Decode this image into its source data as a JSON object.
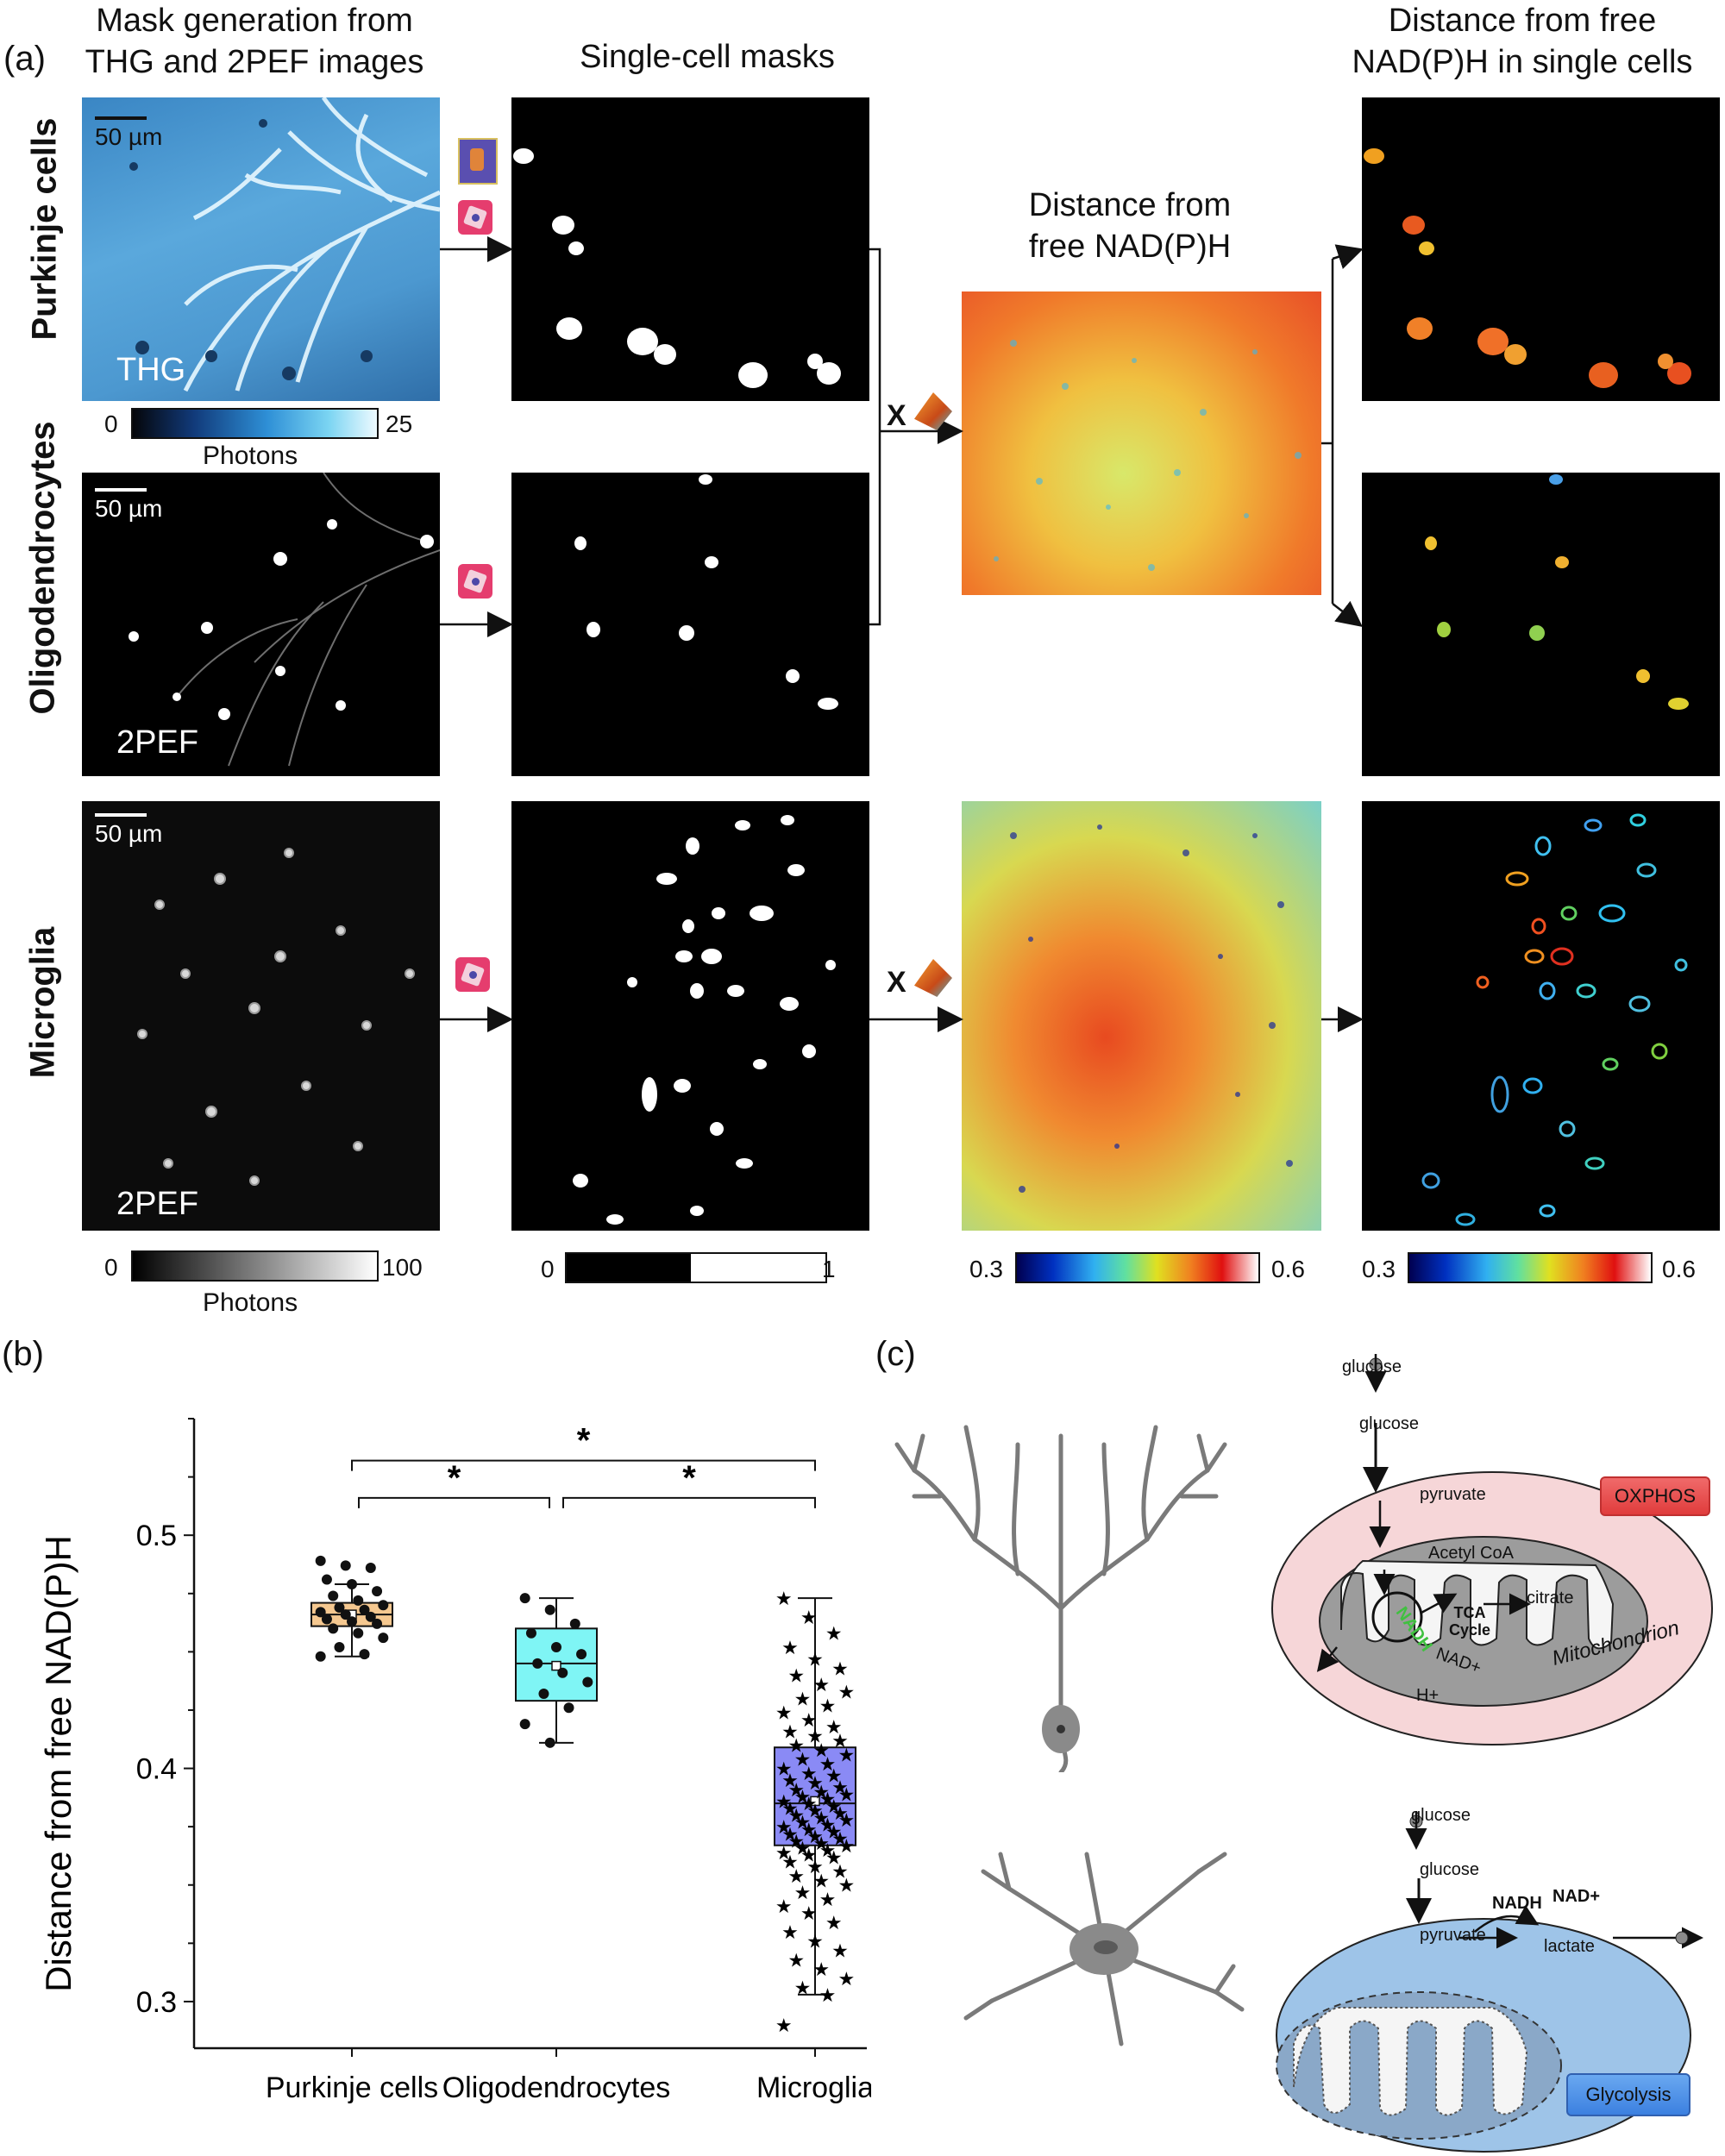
{
  "panel_a": {
    "label": "(a)",
    "headers": {
      "mask_generation": [
        "Mask generation from",
        "THG and 2PEF images"
      ],
      "single_cell": "Single-cell masks",
      "distance_map": [
        "Distance from",
        "free NAD(P)H"
      ],
      "distance_single": [
        "Distance from free",
        "NAD(P)H in single cells"
      ]
    },
    "rows": [
      "Purkinje cells",
      "Oligodendrocytes",
      "Microglia"
    ],
    "scalebar": "50 µm",
    "tags": {
      "thg": "THG",
      "pef1": "2PEF",
      "pef2": "2PEF"
    },
    "multiply_sign": "X",
    "colorbars": {
      "thg": {
        "min": "0",
        "max": "25",
        "label": "Photons"
      },
      "gray": {
        "min": "0",
        "max": "100",
        "label": "Photons"
      },
      "mask": {
        "min": "0",
        "max": "1"
      },
      "map1": {
        "min": "0.3",
        "max": "0.6"
      },
      "map2": {
        "min": "0.3",
        "max": "0.6"
      }
    }
  },
  "panel_b": {
    "label": "(b)",
    "chart_data": {
      "type": "box",
      "ylabel": "Distance from free NAD(P)H",
      "ylim": [
        0.28,
        0.55
      ],
      "yticks": [
        0.3,
        0.4,
        0.5
      ],
      "categories": [
        "Purkinje cells",
        "Oligodendrocytes",
        "Microglia"
      ],
      "boxes": [
        {
          "name": "Purkinje cells",
          "q1": 0.461,
          "median": 0.466,
          "q3": 0.471,
          "whisker_low": 0.448,
          "whisker_high": 0.479,
          "mean": 0.466,
          "color": "#f5c890",
          "points": [
            0.489,
            0.487,
            0.486,
            0.481,
            0.479,
            0.476,
            0.474,
            0.472,
            0.47,
            0.469,
            0.468,
            0.467,
            0.466,
            0.465,
            0.464,
            0.463,
            0.462,
            0.46,
            0.458,
            0.456,
            0.452,
            0.449,
            0.448
          ]
        },
        {
          "name": "Oligodendrocytes",
          "q1": 0.429,
          "median": 0.445,
          "q3": 0.46,
          "whisker_low": 0.411,
          "whisker_high": 0.473,
          "mean": 0.444,
          "color": "#7ff5f5",
          "points": [
            0.473,
            0.468,
            0.462,
            0.458,
            0.452,
            0.449,
            0.445,
            0.441,
            0.437,
            0.432,
            0.426,
            0.419,
            0.411
          ]
        },
        {
          "name": "Microglia",
          "q1": 0.367,
          "median": 0.385,
          "q3": 0.409,
          "whisker_low": 0.303,
          "whisker_high": 0.473,
          "mean": 0.386,
          "color": "#8a8af5",
          "points": [
            0.473,
            0.465,
            0.458,
            0.452,
            0.447,
            0.443,
            0.44,
            0.436,
            0.433,
            0.43,
            0.427,
            0.424,
            0.421,
            0.418,
            0.416,
            0.414,
            0.412,
            0.41,
            0.408,
            0.406,
            0.404,
            0.402,
            0.4,
            0.398,
            0.397,
            0.395,
            0.394,
            0.392,
            0.391,
            0.39,
            0.389,
            0.388,
            0.387,
            0.386,
            0.385,
            0.384,
            0.383,
            0.382,
            0.381,
            0.38,
            0.379,
            0.378,
            0.377,
            0.376,
            0.375,
            0.374,
            0.373,
            0.372,
            0.371,
            0.37,
            0.369,
            0.368,
            0.367,
            0.366,
            0.365,
            0.364,
            0.363,
            0.362,
            0.36,
            0.358,
            0.356,
            0.354,
            0.352,
            0.35,
            0.347,
            0.344,
            0.341,
            0.338,
            0.334,
            0.33,
            0.326,
            0.322,
            0.318,
            0.314,
            0.31,
            0.306,
            0.303,
            0.29
          ]
        }
      ],
      "significance": [
        {
          "from": 0,
          "to": 2,
          "mark": "*"
        },
        {
          "from": 0,
          "to": 1,
          "mark": "*"
        },
        {
          "from": 1,
          "to": 2,
          "mark": "*"
        }
      ]
    }
  },
  "panel_c": {
    "label": "(c)",
    "top": {
      "glucose_outside": "glucose",
      "glucose_inside": "glucose",
      "pyruvate": "pyruvate",
      "acetyl": "Acetyl CoA",
      "tca": [
        "TCA",
        "Cycle"
      ],
      "citrate": "citrate",
      "nadh": "NADH",
      "nadplus": "NAD+",
      "hplus": "H+",
      "mito": "Mitochondrion",
      "badge": "OXPHOS"
    },
    "bottom": {
      "glucose_outside": "glucose",
      "glucose_inside": "glucose",
      "pyruvate": "pyruvate",
      "nadh": "NADH",
      "nadplus": "NAD+",
      "lactate": "lactate",
      "badge": "Glycolysis"
    }
  }
}
